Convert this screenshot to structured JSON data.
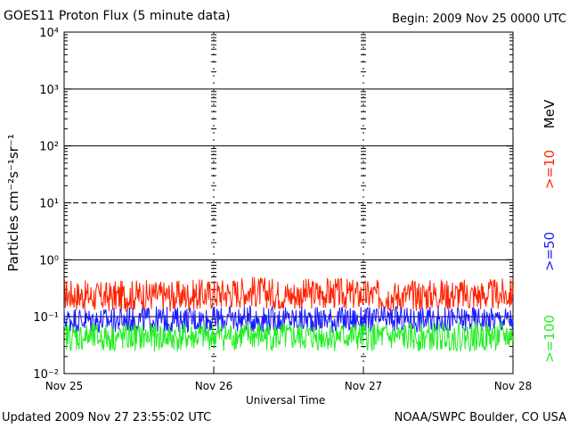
{
  "chart_data": {
    "type": "line",
    "title": "GOES11 Proton Flux (5 minute data)",
    "begin_label": "Begin: 2009 Nov 25 0000 UTC",
    "xlabel": "Universal Time",
    "ylabel": "Particles cm⁻²s⁻¹sr⁻¹",
    "y_scale": "log",
    "ylim": [
      0.01,
      10000
    ],
    "y_tick_labels": [
      "10⁻²",
      "10⁻¹",
      "10⁰",
      "10¹",
      "10²",
      "10³",
      "10⁴"
    ],
    "x_tick_labels": [
      "Nov 25",
      "Nov 26",
      "Nov 27",
      "Nov 28"
    ],
    "grid": true,
    "unit_label": "MeV",
    "series": [
      {
        "name": ">=10",
        "color": "#ff2200",
        "x": [
          "2009-11-25 00:00",
          "2009-11-25 06:00",
          "2009-11-25 12:00",
          "2009-11-25 18:00",
          "2009-11-26 00:00",
          "2009-11-26 06:00",
          "2009-11-26 12:00",
          "2009-11-26 18:00",
          "2009-11-27 00:00",
          "2009-11-27 06:00",
          "2009-11-27 12:00",
          "2009-11-27 18:00",
          "2009-11-28 00:00"
        ],
        "values": [
          0.25,
          0.22,
          0.24,
          0.23,
          0.25,
          0.28,
          0.24,
          0.26,
          0.24,
          0.23,
          0.25,
          0.24,
          0.25
        ]
      },
      {
        "name": ">=50",
        "color": "#1a1aff",
        "x": [
          "2009-11-25 00:00",
          "2009-11-25 06:00",
          "2009-11-25 12:00",
          "2009-11-25 18:00",
          "2009-11-26 00:00",
          "2009-11-26 06:00",
          "2009-11-26 12:00",
          "2009-11-26 18:00",
          "2009-11-27 00:00",
          "2009-11-27 06:00",
          "2009-11-27 12:00",
          "2009-11-27 18:00",
          "2009-11-28 00:00"
        ],
        "values": [
          0.09,
          0.085,
          0.09,
          0.088,
          0.09,
          0.092,
          0.088,
          0.09,
          0.087,
          0.09,
          0.088,
          0.09,
          0.09
        ]
      },
      {
        "name": ">=100",
        "color": "#22ee22",
        "x": [
          "2009-11-25 00:00",
          "2009-11-25 06:00",
          "2009-11-25 12:00",
          "2009-11-25 18:00",
          "2009-11-26 00:00",
          "2009-11-26 06:00",
          "2009-11-26 12:00",
          "2009-11-26 18:00",
          "2009-11-27 00:00",
          "2009-11-27 06:00",
          "2009-11-27 12:00",
          "2009-11-27 18:00",
          "2009-11-28 00:00"
        ],
        "values": [
          0.045,
          0.042,
          0.044,
          0.043,
          0.045,
          0.046,
          0.043,
          0.045,
          0.044,
          0.043,
          0.045,
          0.044,
          0.045
        ]
      }
    ]
  },
  "footer": {
    "updated": "Updated 2009 Nov 27 23:55:02 UTC",
    "source": "NOAA/SWPC Boulder, CO USA"
  }
}
